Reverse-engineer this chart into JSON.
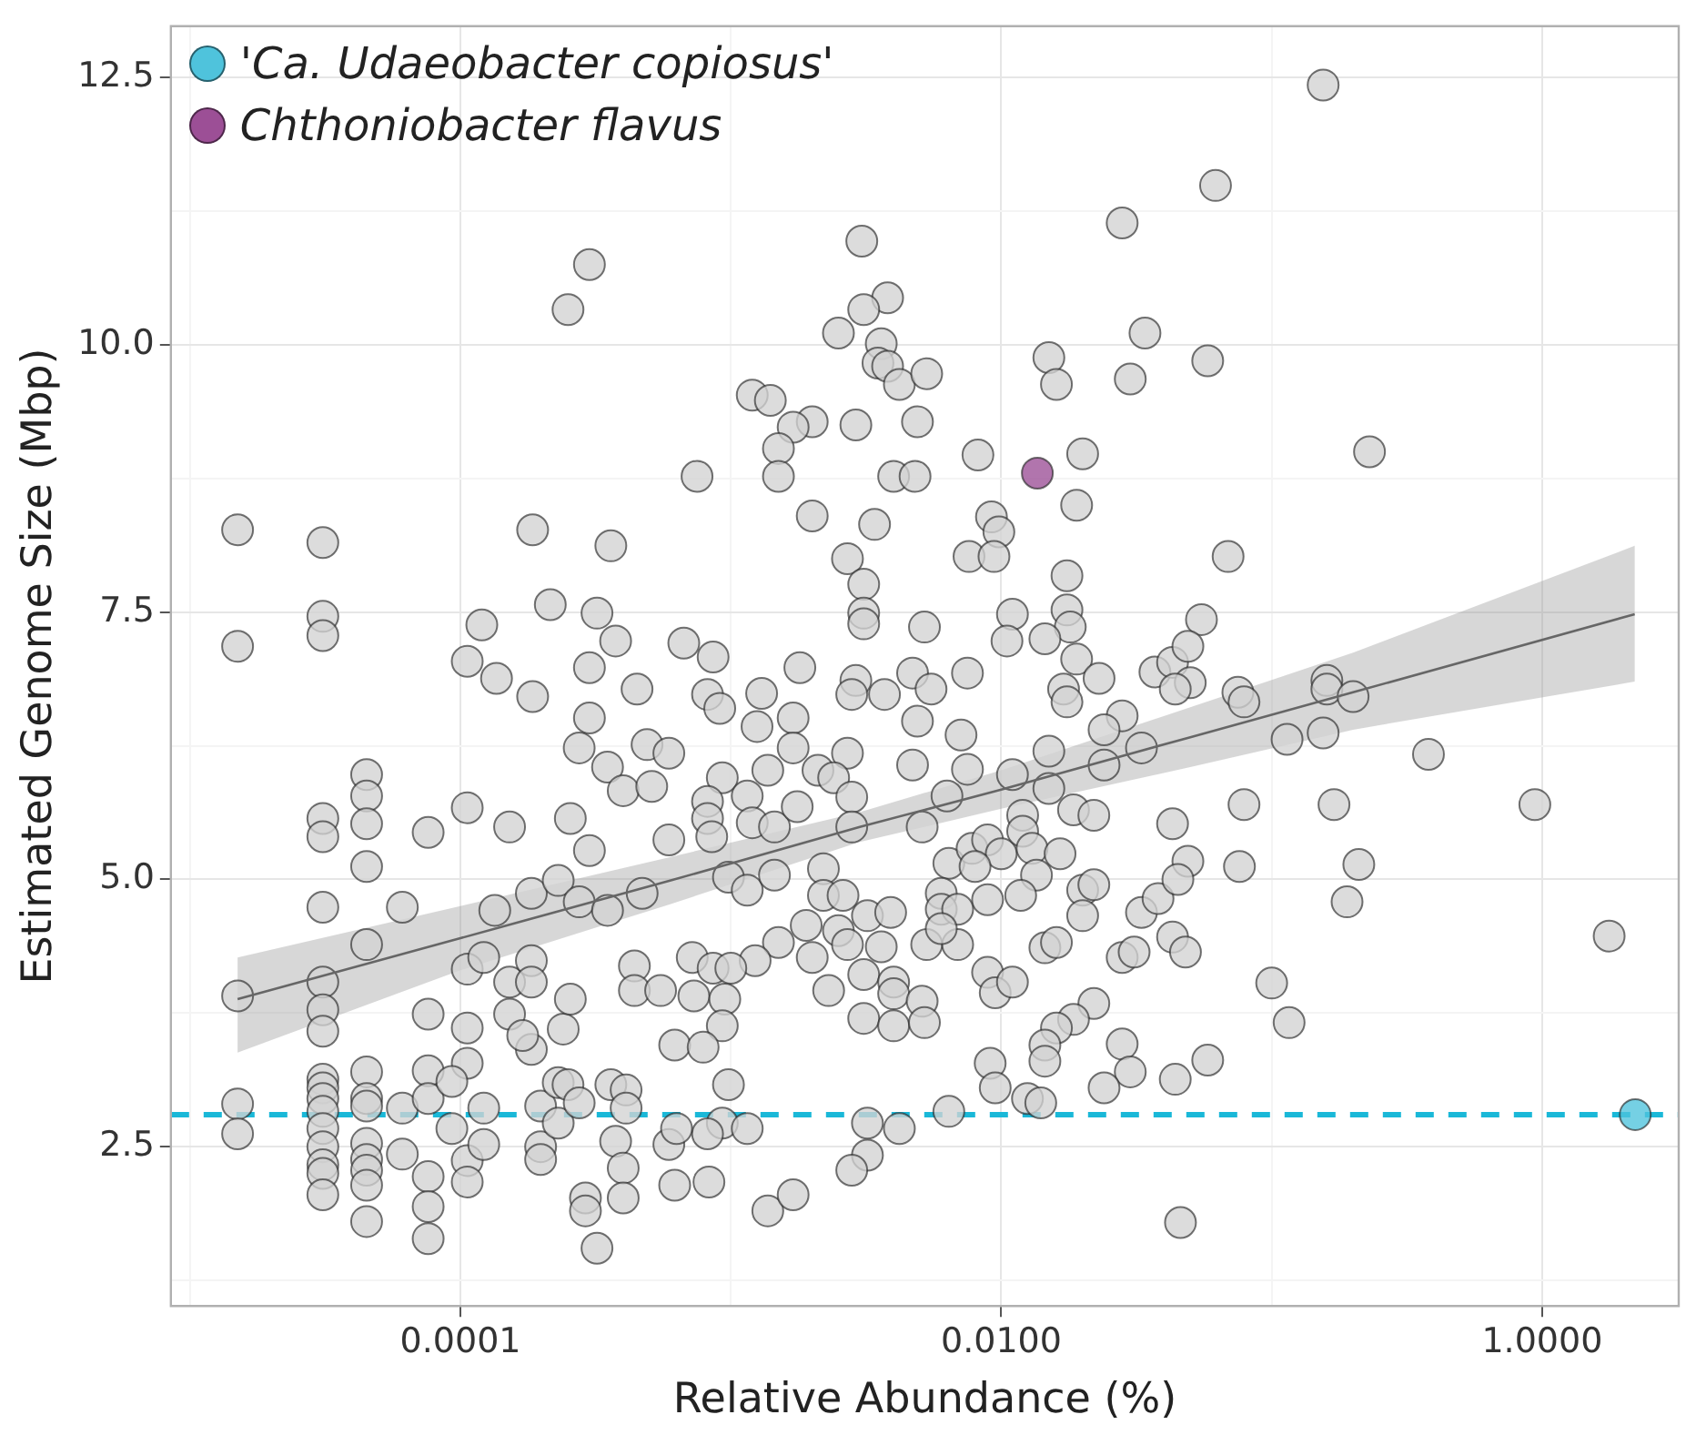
{
  "chart_data": {
    "type": "scatter",
    "xlabel": "Relative Abundance (%)",
    "ylabel": "Estimated Genome Size (Mbp)",
    "log": "x",
    "grid": true,
    "legend": "top left",
    "marker": "circle",
    "xlim": [
      8.5e-06,
      3.2
    ],
    "ylim": [
      1.01,
      12.98
    ],
    "xticks": [
      {
        "value": 1e-05,
        "label": null
      },
      {
        "value": 0.0001,
        "label": "0.0001"
      },
      {
        "value": 0.001,
        "label": null
      },
      {
        "value": 0.01,
        "label": "0.0100"
      },
      {
        "value": 0.1,
        "label": null
      },
      {
        "value": 1,
        "label": "1.0000"
      }
    ],
    "yticks": [
      {
        "value": 1.25,
        "label": null
      },
      2.5,
      {
        "value": 3.75,
        "label": null
      },
      {
        "value": 5,
        "label": "5.0"
      },
      {
        "value": 6.25,
        "label": null
      },
      7.5,
      {
        "value": 8.75,
        "label": null
      },
      {
        "value": 10,
        "label": "10.0"
      },
      {
        "value": 11.25,
        "label": null
      },
      12.5
    ],
    "ref_lines": [
      {
        "axis": "y",
        "value": 2.8,
        "label": null,
        "color": "#1ab8d8",
        "line_style": "dashed"
      }
    ],
    "series": [
      {
        "color": "#d3d3d3",
        "x": [
          0.0003,
          0.00025,
          1.5e-05,
          3.1e-05,
          3.1e-05,
          3.1e-05,
          1.5e-05,
          0.000185,
          0.00036,
          0.00012,
          0.000215,
          0.00032,
          0.000375,
          0.000106,
          0.000136,
          0.000185,
          0.0003,
          0.00045,
          0.0003,
          0.028,
          0.00305,
          0.0038,
          0.0031,
          0.0025,
          0.0036,
          0.0035,
          0.0038,
          0.0042,
          0.0053,
          0.034,
          0.015,
          0.016,
          0.03,
          0.0012,
          0.0014,
          0.002,
          0.0017,
          0.0029,
          0.0049,
          0.0015,
          0.0015,
          0.00075,
          0.004,
          0.0048,
          0.0082,
          0.02,
          0.019,
          0.002,
          0.0034,
          0.0092,
          0.0098,
          0.0076,
          0.0094,
          0.0027,
          0.0031,
          0.0031,
          0.0031,
          0.0052,
          0.0175,
          0.0175,
          0.018,
          0.011,
          0.0105,
          0.0145,
          0.019,
          0.023,
          0.017,
          0.0175,
          0.028,
          0.024,
          0.037,
          0.043,
          0.00067,
          0.00086,
          0.0018,
          0.00082,
          0.00091,
          0.0013,
          0.00125,
          0.0017,
          0.0029,
          0.0028,
          0.0037,
          0.0047,
          0.0055,
          0.0075,
          0.0049,
          0.0071,
          0.155,
          0.062,
          0.058,
          0.23,
          0.069,
          0.055,
          0.049,
          0.05,
          0.075,
          0.079,
          0.16,
          0.16,
          0.2,
          0.155,
          0.114,
          0.044,
          1.5e-05,
          1.5e-05,
          1.5e-05,
          3.1e-05,
          3.1e-05,
          3.1e-05,
          3.1e-05,
          3.1e-05,
          3.1e-05,
          3.1e-05,
          3.1e-05,
          3.1e-05,
          3.1e-05,
          3.1e-05,
          3.1e-05,
          3.1e-05,
          3.1e-05,
          3.1e-05,
          4.5e-05,
          4.5e-05,
          4.5e-05,
          4.5e-05,
          4.5e-05,
          4.5e-05,
          4.5e-05,
          4.5e-05,
          4.5e-05,
          4.5e-05,
          4.5e-05,
          4.5e-05,
          4.5e-05,
          6.1e-05,
          6.1e-05,
          6.1e-05,
          7.6e-05,
          7.6e-05,
          7.6e-05,
          7.6e-05,
          7.6e-05,
          7.6e-05,
          7.6e-05,
          0.000106,
          0.000106,
          0.000106,
          0.000106,
          0.000106,
          0.000106,
          9.3e-05,
          9.3e-05,
          0.000122,
          0.000122,
          0.000122,
          0.000152,
          0.000152,
          0.000152,
          0.000134,
          0.000183,
          0.000183,
          0.000183,
          0.000183,
          0.00017,
          0.000198,
          0.000198,
          0.000198,
          0.00023,
          0.00023,
          0.00023,
          0.00025,
          0.000275,
          0.000275,
          0.000275,
          0.000255,
          0.0003,
          0.00024,
          0.000255,
          0.00029,
          0.00029,
          0.00032,
          0.00035,
          0.00035,
          0.0004,
          0.00049,
          0.00059,
          0.00059,
          0.00059,
          0.00051,
          0.00047,
          0.00044,
          0.00044,
          0.00055,
          0.00062,
          0.00062,
          0.00036,
          0.00041,
          0.00041,
          0.000375,
          0.0004,
          0.0004,
          0.00093,
          0.00115,
          0.00137,
          0.00082,
          0.00082,
          0.00085,
          0.0012,
          0.00145,
          0.00176,
          0.0021,
          0.0027,
          0.0024,
          0.0028,
          0.0028,
          0.0047,
          0.0075,
          0.0051,
          0.0063,
          0.0017,
          0.00098,
          0.00115,
          0.00145,
          0.0022,
          0.0022,
          0.0026,
          0.0064,
          0.0078,
          0.0089,
          0.01,
          0.008,
          0.012,
          0.012,
          0.013,
          0.0165,
          0.0135,
          0.0118,
          0.0089,
          0.015,
          0.011,
          0.015,
          0.024,
          0.0185,
          0.022,
          0.033,
          0.043,
          0.02,
          0.022,
          0.02,
          0.006,
          0.006,
          0.0069,
          0.0053,
          0.0069,
          0.006,
          0.0019,
          0.0025,
          0.0027,
          0.0032,
          0.0039,
          0.0036,
          0.002,
          0.0015,
          0.00123,
          0.00072,
          0.00086,
          0.001,
          0.00073,
          0.00095,
          0.00093,
          0.00079,
          0.0023,
          0.0031,
          0.0031,
          0.004,
          0.004,
          0.004,
          0.0051,
          0.0052,
          0.0089,
          0.0095,
          0.011,
          0.0145,
          0.016,
          0.022,
          0.0185,
          0.016,
          0.0145,
          0.0145,
          0.0091,
          0.0095,
          0.0125,
          0.014,
          0.028,
          0.03,
          0.024,
          0.033,
          0.028,
          0.031,
          0.038,
          0.043,
          0.044,
          0.046,
          0.00098,
          0.00093,
          0.00115,
          0.00082,
          0.00063,
          0.00083,
          0.00137,
          0.0017,
          0.0032,
          0.0042,
          0.0032,
          0.0028,
          0.0064,
          0.38,
          0.079,
          0.17,
          0.94,
          0.049,
          0.045,
          0.076,
          0.21,
          0.19,
          0.048,
          1.77,
          0.1,
          0.116,
          0.058
        ],
        "values": [
          10.75,
          10.33,
          8.27,
          8.15,
          7.46,
          7.28,
          7.18,
          8.27,
          8.12,
          7.38,
          7.57,
          7.49,
          7.23,
          7.04,
          6.88,
          6.71,
          6.98,
          6.78,
          6.51,
          11.14,
          10.97,
          10.44,
          10.33,
          10.11,
          10.01,
          9.83,
          9.8,
          9.63,
          9.73,
          10.11,
          9.88,
          9.63,
          9.68,
          9.53,
          9.48,
          9.28,
          9.23,
          9.25,
          9.28,
          9.03,
          8.77,
          8.77,
          8.77,
          8.77,
          8.97,
          8.98,
          8.5,
          8.4,
          8.32,
          8.39,
          8.25,
          8.02,
          8.02,
          8.0,
          7.76,
          7.49,
          7.39,
          7.36,
          7.84,
          7.52,
          7.36,
          7.48,
          7.23,
          7.25,
          7.06,
          6.88,
          6.78,
          6.66,
          6.53,
          6.4,
          6.94,
          7.03,
          7.21,
          7.08,
          6.98,
          6.73,
          6.6,
          6.74,
          6.43,
          6.51,
          6.86,
          6.73,
          6.73,
          6.93,
          6.78,
          6.93,
          6.48,
          6.35,
          12.43,
          11.49,
          9.85,
          9.0,
          8.02,
          7.43,
          7.18,
          6.84,
          6.75,
          6.66,
          6.86,
          6.78,
          6.71,
          6.37,
          6.31,
          6.78,
          3.91,
          2.9,
          2.62,
          5.57,
          5.4,
          4.74,
          4.04,
          3.78,
          3.58,
          3.13,
          3.05,
          2.95,
          2.83,
          2.67,
          2.5,
          2.33,
          2.25,
          2.05,
          5.98,
          5.78,
          5.52,
          5.12,
          4.39,
          3.2,
          2.95,
          2.88,
          2.53,
          2.38,
          2.28,
          2.14,
          1.8,
          4.74,
          2.86,
          2.43,
          5.44,
          3.74,
          3.21,
          2.95,
          2.22,
          1.94,
          1.64,
          5.67,
          4.16,
          3.61,
          3.28,
          2.37,
          2.17,
          3.11,
          2.67,
          4.27,
          2.86,
          2.52,
          5.49,
          4.04,
          3.74,
          4.71,
          4.87,
          3.41,
          4.24,
          4.04,
          3.54,
          2.88,
          2.5,
          2.38,
          4.99,
          3.1,
          2.72,
          3.08,
          2.91,
          6.23,
          4.79,
          5.57,
          5.27,
          3.6,
          3.88,
          2.02,
          1.9,
          1.55,
          6.05,
          4.71,
          5.83,
          6.26,
          6.18,
          5.37,
          2.52,
          5.87,
          4.87,
          4.19,
          3.96,
          3.96,
          3.45,
          2.14,
          3.08,
          3.03,
          2.86,
          2.55,
          2.3,
          2.02,
          5.95,
          5.78,
          6.02,
          5.73,
          5.57,
          5.4,
          5.53,
          5.49,
          5.68,
          6.02,
          6.18,
          5.95,
          5.77,
          5.49,
          6.07,
          6.03,
          5.49,
          5.78,
          6.23,
          5.02,
          4.9,
          5.04,
          5.1,
          4.85,
          4.85,
          5.15,
          5.29,
          5.37,
          5.24,
          5.12,
          5.6,
          5.45,
          5.29,
          5.24,
          5.04,
          4.85,
          4.81,
          5.85,
          5.98,
          6.2,
          6.07,
          5.65,
          5.6,
          6.23,
          5.52,
          4.9,
          4.95,
          4.66,
          4.87,
          4.72,
          4.72,
          4.39,
          4.39,
          4.54,
          4.57,
          4.52,
          4.39,
          4.66,
          4.69,
          4.37,
          4.27,
          4.41,
          4.24,
          4.27,
          4.17,
          4.17,
          3.91,
          3.88,
          3.63,
          3.43,
          3.96,
          4.11,
          3.7,
          3.63,
          4.04,
          3.93,
          3.86,
          3.66,
          4.13,
          3.94,
          4.04,
          4.36,
          4.41,
          3.84,
          3.69,
          3.61,
          3.45,
          3.3,
          3.28,
          3.05,
          2.95,
          2.91,
          3.46,
          3.2,
          3.05,
          4.69,
          4.27,
          4.32,
          4.82,
          4.46,
          3.13,
          1.79,
          3.08,
          2.72,
          2.67,
          2.62,
          2.67,
          2.17,
          1.9,
          2.05,
          2.72,
          2.67,
          2.42,
          2.28,
          2.83,
          6.17,
          5.7,
          5.7,
          5.7,
          5.17,
          5.0,
          5.12,
          5.14,
          4.79,
          4.32,
          4.47,
          4.03,
          3.66,
          3.31
        ]
      },
      {
        "type": "line",
        "color": "#666666",
        "marker": "none",
        "x": [
          1.5e-05,
          0.0001,
          0.0006,
          0.003,
          0.01,
          0.05,
          0.2,
          2.2
        ],
        "values": [
          3.88,
          4.45,
          4.99,
          5.49,
          5.84,
          6.33,
          6.75,
          7.48
        ],
        "lower": [
          3.38,
          4.15,
          4.77,
          5.35,
          5.66,
          6.05,
          6.4,
          6.85
        ],
        "upper": [
          4.27,
          4.75,
          5.21,
          5.63,
          6.02,
          6.61,
          7.12,
          8.12
        ]
      },
      {
        "name": "'Ca. Udaeobacter copiosus'",
        "color": "#4fc3dc",
        "x": [
          2.21
        ],
        "values": [
          2.8
        ]
      },
      {
        "name": "Chthoniobacter flavus",
        "color": "#9c4f96",
        "x": [
          0.0136
        ],
        "values": [
          8.8
        ]
      }
    ]
  }
}
